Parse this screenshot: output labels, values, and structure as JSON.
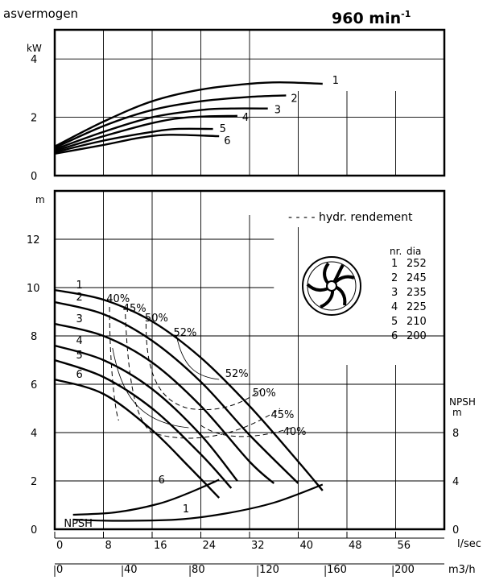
{
  "header": {
    "partial_title": "asvermogen",
    "speed_text": "960 min",
    "speed_exp": "-1"
  },
  "legend": {
    "efficiency_note": "- - - - hydr. rendement",
    "table_head_nr": "nr.",
    "table_head_dia": "dia",
    "rows": [
      {
        "nr": "1",
        "dia": "252"
      },
      {
        "nr": "2",
        "dia": "245"
      },
      {
        "nr": "3",
        "dia": "235"
      },
      {
        "nr": "4",
        "dia": "225"
      },
      {
        "nr": "5",
        "dia": "210"
      },
      {
        "nr": "6",
        "dia": "200"
      }
    ],
    "impeller_icon": "impeller-icon"
  },
  "chart_data": [
    {
      "type": "line",
      "panel": "power",
      "ylabel": "kW",
      "xlim": [
        0,
        64
      ],
      "ylim": [
        0,
        5
      ],
      "y_ticks": [
        "0",
        "2",
        "4"
      ],
      "grid": true,
      "series": [
        {
          "name": "1",
          "x": [
            0,
            8,
            16,
            24,
            32,
            37,
            44
          ],
          "y": [
            1.0,
            1.85,
            2.55,
            2.95,
            3.15,
            3.2,
            3.15
          ]
        },
        {
          "name": "2",
          "x": [
            0,
            8,
            16,
            24,
            32,
            38
          ],
          "y": [
            0.95,
            1.7,
            2.25,
            2.55,
            2.7,
            2.75
          ]
        },
        {
          "name": "3",
          "x": [
            0,
            8,
            16,
            24,
            29,
            35
          ],
          "y": [
            0.9,
            1.5,
            2.0,
            2.25,
            2.3,
            2.3
          ]
        },
        {
          "name": "4",
          "x": [
            0,
            8,
            16,
            22,
            30
          ],
          "y": [
            0.85,
            1.35,
            1.8,
            2.0,
            2.05
          ]
        },
        {
          "name": "5",
          "x": [
            0,
            8,
            16,
            20,
            26
          ],
          "y": [
            0.8,
            1.2,
            1.5,
            1.6,
            1.6
          ]
        },
        {
          "name": "6",
          "x": [
            0,
            8,
            14,
            19,
            27
          ],
          "y": [
            0.75,
            1.05,
            1.3,
            1.4,
            1.35
          ]
        }
      ]
    },
    {
      "type": "line",
      "panel": "head",
      "ylabel": "m",
      "xlabel": "l/sec",
      "xlabel2": "m3/h",
      "xlim": [
        0,
        64
      ],
      "ylim": [
        0,
        14
      ],
      "x_ticks": [
        "0",
        "8",
        "16",
        "24",
        "32",
        "40",
        "48",
        "56"
      ],
      "x2_ticks": [
        "0",
        "40",
        "80",
        "120",
        "160",
        "200"
      ],
      "y_ticks": [
        "0",
        "2",
        "4",
        "6",
        "8",
        "10",
        "12"
      ],
      "y2label": "NPSH m",
      "y2_ticks": [
        "0",
        "4",
        "8"
      ],
      "grid": true,
      "series": [
        {
          "name": "1",
          "x": [
            0,
            8,
            16,
            24,
            32,
            40,
            44
          ],
          "y": [
            9.9,
            9.5,
            8.6,
            7.1,
            5.1,
            2.8,
            1.6
          ]
        },
        {
          "name": "2",
          "x": [
            0,
            8,
            16,
            24,
            32,
            40
          ],
          "y": [
            9.4,
            8.9,
            7.8,
            6.1,
            3.9,
            1.9
          ]
        },
        {
          "name": "3",
          "x": [
            0,
            8,
            16,
            24,
            32,
            36
          ],
          "y": [
            8.5,
            8.0,
            6.9,
            5.1,
            2.8,
            1.9
          ]
        },
        {
          "name": "4",
          "x": [
            0,
            8,
            16,
            24,
            30
          ],
          "y": [
            7.6,
            7.0,
            5.8,
            3.9,
            2.0
          ]
        },
        {
          "name": "5",
          "x": [
            0,
            8,
            16,
            24,
            29
          ],
          "y": [
            7.0,
            6.3,
            5.0,
            3.1,
            1.7
          ]
        },
        {
          "name": "6",
          "x": [
            0,
            8,
            16,
            22,
            27
          ],
          "y": [
            6.2,
            5.6,
            4.1,
            2.6,
            1.3
          ]
        }
      ],
      "efficiency_labels": [
        "40%",
        "45%",
        "50%",
        "52%",
        "52%",
        "50%",
        "45%",
        "40%"
      ],
      "npsh_curve_labels": [
        "NPSH",
        "6",
        "1"
      ],
      "npsh_curves": [
        {
          "name": "1",
          "x": [
            3,
            10,
            20,
            28,
            36,
            44
          ],
          "y": [
            0.8,
            0.7,
            0.8,
            1.3,
            2.2,
            3.7
          ]
        },
        {
          "name": "6",
          "x": [
            3,
            10,
            17,
            22,
            27
          ],
          "y": [
            1.2,
            1.4,
            2.1,
            3.0,
            4.1
          ]
        }
      ]
    }
  ]
}
